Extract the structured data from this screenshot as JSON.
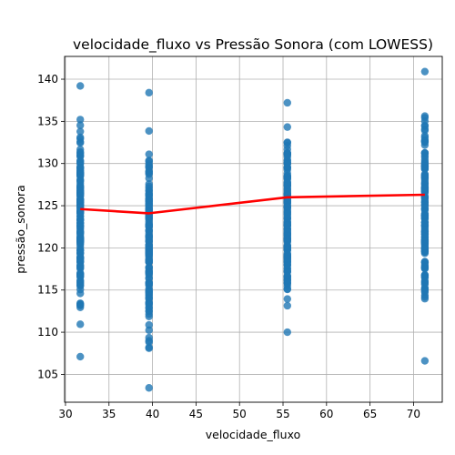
{
  "chart_data": {
    "type": "scatter",
    "title": "velocidade_fluxo vs Pressão Sonora (com LOWESS)",
    "xlabel": "velocidade_fluxo",
    "ylabel": "pressão_sonora",
    "xlim": [
      29.9,
      73.3
    ],
    "ylim": [
      101.7,
      142.7
    ],
    "x_ticks": [
      30,
      35,
      40,
      45,
      50,
      55,
      60,
      65,
      70
    ],
    "y_ticks": [
      105,
      110,
      115,
      120,
      125,
      130,
      135,
      140
    ],
    "grid": true,
    "colors": {
      "points": "#1f77b4",
      "lowess": "#ff0000",
      "grid": "#b0b0b0"
    },
    "scatter_series": [
      {
        "x": 31.7,
        "y_min": 107.1,
        "y_max": 139.2
      },
      {
        "x": 39.6,
        "y_min": 103.4,
        "y_max": 138.4
      },
      {
        "x": 55.5,
        "y_min": 110.0,
        "y_max": 137.2
      },
      {
        "x": 71.3,
        "y_min": 106.6,
        "y_max": 140.9
      }
    ],
    "lowess": {
      "x": [
        31.7,
        39.6,
        55.5,
        71.3
      ],
      "y": [
        124.6,
        124.1,
        126.0,
        126.3
      ]
    }
  }
}
